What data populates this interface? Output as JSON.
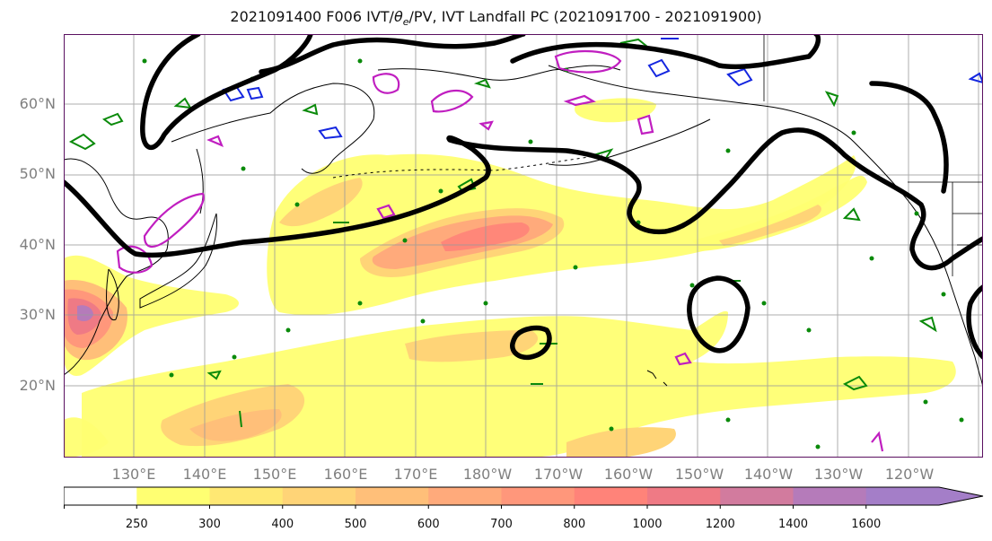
{
  "title": {
    "prefix": "2021091400 F006 IVT/",
    "theta": "θ",
    "theta_sub": "e",
    "suffix": "/PV, IVT Landfall PC (2021091700 - 2021091900)"
  },
  "lat_labels": [
    "60°N",
    "50°N",
    "40°N",
    "30°N",
    "20°N"
  ],
  "lon_labels": [
    "130°E",
    "140°E",
    "150°E",
    "160°E",
    "170°E",
    "180°W",
    "170°W",
    "160°W",
    "150°W",
    "140°W",
    "130°W",
    "120°W"
  ],
  "colorbar": {
    "ticks": [
      "250",
      "300",
      "400",
      "500",
      "600",
      "700",
      "800",
      "1000",
      "1200",
      "1400",
      "1600"
    ],
    "colors": [
      "#ffffff",
      "#ffff72",
      "#ffe873",
      "#ffd477",
      "#ffbf79",
      "#ffaa7b",
      "#ff977b",
      "#ff8379",
      "#ef7a85",
      "#d27b9e",
      "#b57bba",
      "#a47ec8"
    ]
  }
}
